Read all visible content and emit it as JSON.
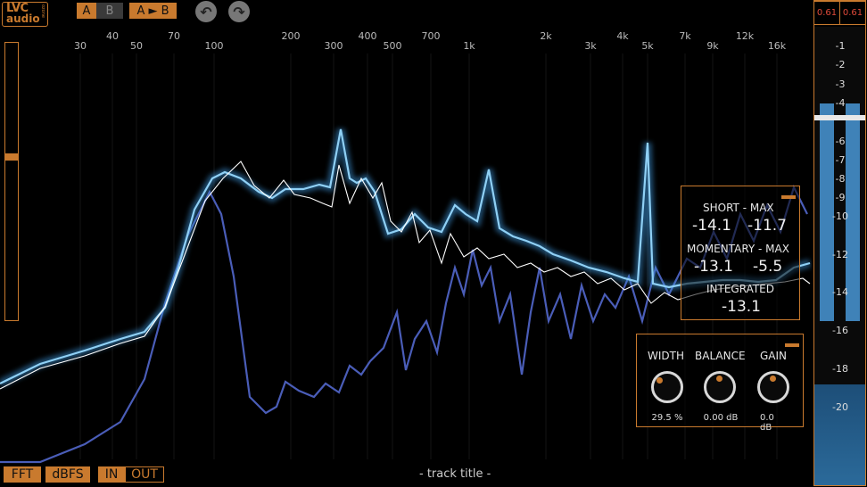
{
  "logo": {
    "line1": "LVC",
    "line2": "audio",
    "tag": "ozone"
  },
  "toolbar": {
    "ab_a": "A",
    "ab_b": "B",
    "ab_copy": "A ► B",
    "undo_icon": "undo-arrow-icon",
    "redo_icon": "redo-arrow-icon"
  },
  "freq_labels_top": [
    "40",
    "70",
    "200",
    "400",
    "700",
    "2k",
    "4k",
    "7k",
    "12k"
  ],
  "freq_labels_bottom": [
    "30",
    "50",
    "100",
    "300",
    "500",
    "1k",
    "3k",
    "5k",
    "9k",
    "16k"
  ],
  "loudness": {
    "short_max_label": "SHORT  -  MAX",
    "short": "-14.1",
    "short_max": "-11.7",
    "momentary_max_label": "MOMENTARY - MAX",
    "momentary": "-13.1",
    "momentary_max": "-5.5",
    "integrated_label": "INTEGRATED",
    "integrated": "-13.1"
  },
  "stereo": {
    "width_label": "WIDTH",
    "width_value": "29.5 %",
    "balance_label": "BALANCE",
    "balance_value": "0.00 dB",
    "gain_label": "GAIN",
    "gain_value": "0.0 dB"
  },
  "meter": {
    "peak_left": "0.61",
    "peak_right": "0.61",
    "db_labels": [
      "-1",
      "-2",
      "-3",
      "-4",
      "-6",
      "-7",
      "-8",
      "-9",
      "-10",
      "-12",
      "-14",
      "-16",
      "-18",
      "-20"
    ],
    "level_left_fraction": 0.79,
    "level_right_fraction": 0.79
  },
  "bottom": {
    "fft": "FFT",
    "dbfs": "dBFS",
    "in": "IN",
    "out": "OUT",
    "track_title": "- track title -"
  },
  "colors": {
    "accent": "#c97a2e",
    "spectrum_main": "#6fb8e8",
    "spectrum_side": "#4a5db8",
    "spectrum_ref": "#ffffff",
    "meter": "#3f82b8"
  }
}
